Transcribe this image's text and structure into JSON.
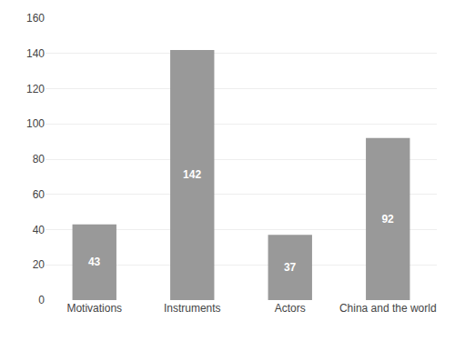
{
  "chart_data": {
    "type": "bar",
    "categories": [
      "Motivations",
      "Instruments",
      "Actors",
      "China and the world"
    ],
    "values": [
      43,
      142,
      37,
      92
    ],
    "color": "#999999",
    "ylim": [
      0,
      160
    ],
    "yticks": [
      0,
      20,
      40,
      60,
      80,
      100,
      120,
      140,
      160
    ],
    "grid": true,
    "data_labels": true
  }
}
